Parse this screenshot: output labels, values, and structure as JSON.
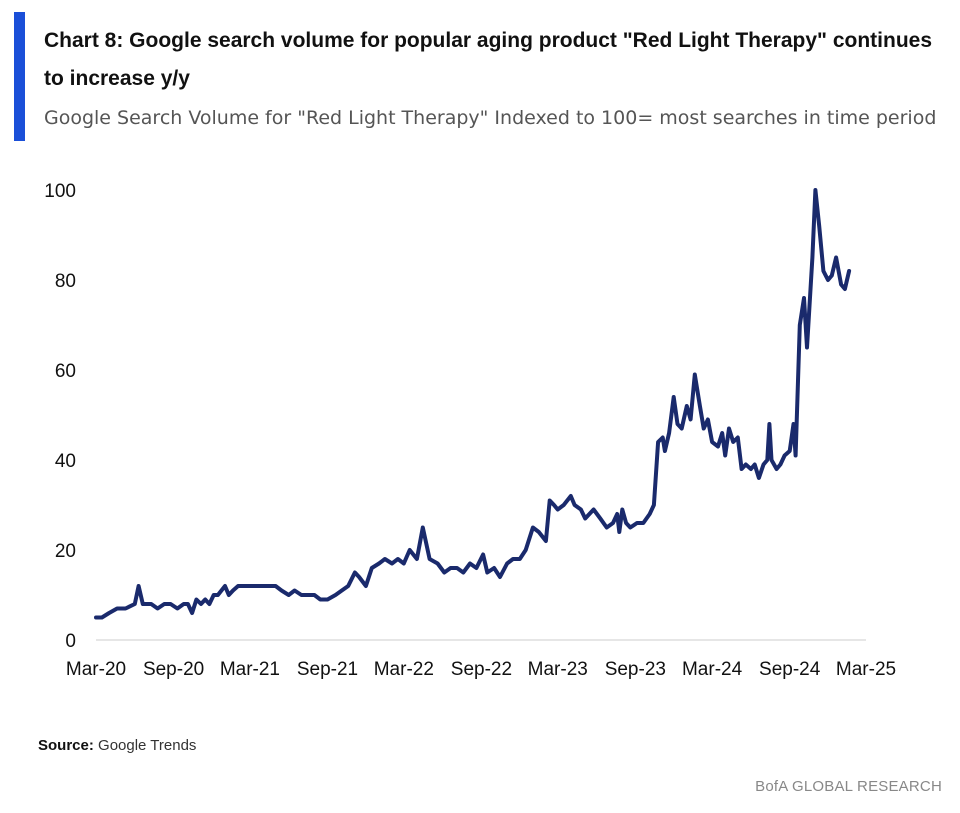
{
  "header": {
    "title": "Chart 8: Google search volume for popular aging product \"Red Light Therapy\" continues to increase y/y",
    "subtitle": "Google Search Volume for \"Red Light Therapy\" Indexed to 100= most searches in time period",
    "accent_color": "#1a4fd8"
  },
  "footer": {
    "source_label": "Source:",
    "source_text": " Google Trends",
    "brand": "BofA GLOBAL RESEARCH"
  },
  "chart_data": {
    "type": "line",
    "title": "",
    "xlabel": "",
    "ylabel": "",
    "ylim": [
      0,
      100
    ],
    "yticks": [
      "0",
      "20",
      "40",
      "60",
      "80",
      "100"
    ],
    "xlim": [
      "2020-03",
      "2025-03"
    ],
    "xticks": [
      {
        "label": "Mar-20",
        "date": "2020-03"
      },
      {
        "label": "Sep-20",
        "date": "2020-09"
      },
      {
        "label": "Mar-21",
        "date": "2021-03"
      },
      {
        "label": "Sep-21",
        "date": "2021-09"
      },
      {
        "label": "Mar-22",
        "date": "2022-03"
      },
      {
        "label": "Sep-22",
        "date": "2022-09"
      },
      {
        "label": "Mar-23",
        "date": "2023-03"
      },
      {
        "label": "Sep-23",
        "date": "2023-09"
      },
      {
        "label": "Mar-24",
        "date": "2024-03"
      },
      {
        "label": "Sep-24",
        "date": "2024-09"
      },
      {
        "label": "Mar-25",
        "date": "2025-03"
      }
    ],
    "grid": false,
    "line_color": "#1a2a6c",
    "series": [
      {
        "points": [
          [
            "2020-03-01",
            5
          ],
          [
            "2020-03-15",
            5
          ],
          [
            "2020-04-01",
            6
          ],
          [
            "2020-04-20",
            7
          ],
          [
            "2020-05-10",
            7
          ],
          [
            "2020-06-01",
            8
          ],
          [
            "2020-06-10",
            12
          ],
          [
            "2020-06-20",
            8
          ],
          [
            "2020-07-10",
            8
          ],
          [
            "2020-07-25",
            7
          ],
          [
            "2020-08-10",
            8
          ],
          [
            "2020-08-25",
            8
          ],
          [
            "2020-09-10",
            7
          ],
          [
            "2020-09-25",
            8
          ],
          [
            "2020-10-05",
            8
          ],
          [
            "2020-10-15",
            6
          ],
          [
            "2020-10-25",
            9
          ],
          [
            "2020-11-05",
            8
          ],
          [
            "2020-11-15",
            9
          ],
          [
            "2020-11-25",
            8
          ],
          [
            "2020-12-05",
            10
          ],
          [
            "2020-12-15",
            10
          ],
          [
            "2021-01-01",
            12
          ],
          [
            "2021-01-10",
            10
          ],
          [
            "2021-01-20",
            11
          ],
          [
            "2021-02-01",
            12
          ],
          [
            "2021-03-01",
            12
          ],
          [
            "2021-04-01",
            12
          ],
          [
            "2021-05-01",
            12
          ],
          [
            "2021-05-15",
            11
          ],
          [
            "2021-06-01",
            10
          ],
          [
            "2021-06-15",
            11
          ],
          [
            "2021-07-01",
            10
          ],
          [
            "2021-08-01",
            10
          ],
          [
            "2021-08-15",
            9
          ],
          [
            "2021-09-01",
            9
          ],
          [
            "2021-09-20",
            10
          ],
          [
            "2021-10-05",
            11
          ],
          [
            "2021-10-20",
            12
          ],
          [
            "2021-11-05",
            15
          ],
          [
            "2021-11-15",
            14
          ],
          [
            "2021-12-01",
            12
          ],
          [
            "2021-12-15",
            16
          ],
          [
            "2022-01-01",
            17
          ],
          [
            "2022-01-15",
            18
          ],
          [
            "2022-02-01",
            17
          ],
          [
            "2022-02-15",
            18
          ],
          [
            "2022-03-01",
            17
          ],
          [
            "2022-03-15",
            20
          ],
          [
            "2022-04-01",
            18
          ],
          [
            "2022-04-15",
            25
          ],
          [
            "2022-05-01",
            18
          ],
          [
            "2022-05-20",
            17
          ],
          [
            "2022-06-05",
            15
          ],
          [
            "2022-06-20",
            16
          ],
          [
            "2022-07-05",
            16
          ],
          [
            "2022-07-20",
            15
          ],
          [
            "2022-08-05",
            17
          ],
          [
            "2022-08-20",
            16
          ],
          [
            "2022-09-05",
            19
          ],
          [
            "2022-09-15",
            15
          ],
          [
            "2022-10-01",
            16
          ],
          [
            "2022-10-15",
            14
          ],
          [
            "2022-11-01",
            17
          ],
          [
            "2022-11-15",
            18
          ],
          [
            "2022-12-01",
            18
          ],
          [
            "2022-12-15",
            20
          ],
          [
            "2023-01-01",
            25
          ],
          [
            "2023-01-15",
            24
          ],
          [
            "2023-02-01",
            22
          ],
          [
            "2023-02-10",
            31
          ],
          [
            "2023-02-20",
            30
          ],
          [
            "2023-03-01",
            29
          ],
          [
            "2023-03-15",
            30
          ],
          [
            "2023-04-01",
            32
          ],
          [
            "2023-04-10",
            30
          ],
          [
            "2023-04-25",
            29
          ],
          [
            "2023-05-05",
            27
          ],
          [
            "2023-05-15",
            28
          ],
          [
            "2023-05-25",
            29
          ],
          [
            "2023-06-10",
            27
          ],
          [
            "2023-06-25",
            25
          ],
          [
            "2023-07-10",
            26
          ],
          [
            "2023-07-20",
            28
          ],
          [
            "2023-07-25",
            24
          ],
          [
            "2023-08-01",
            29
          ],
          [
            "2023-08-10",
            26
          ],
          [
            "2023-08-20",
            25
          ],
          [
            "2023-09-05",
            26
          ],
          [
            "2023-09-20",
            26
          ],
          [
            "2023-10-05",
            28
          ],
          [
            "2023-10-15",
            30
          ],
          [
            "2023-10-25",
            44
          ],
          [
            "2023-11-05",
            45
          ],
          [
            "2023-11-10",
            42
          ],
          [
            "2023-11-20",
            46
          ],
          [
            "2023-12-01",
            54
          ],
          [
            "2023-12-10",
            48
          ],
          [
            "2023-12-20",
            47
          ],
          [
            "2024-01-01",
            52
          ],
          [
            "2024-01-10",
            49
          ],
          [
            "2024-01-20",
            59
          ],
          [
            "2024-02-01",
            52
          ],
          [
            "2024-02-10",
            47
          ],
          [
            "2024-02-20",
            49
          ],
          [
            "2024-03-01",
            44
          ],
          [
            "2024-03-15",
            43
          ],
          [
            "2024-03-25",
            46
          ],
          [
            "2024-04-01",
            41
          ],
          [
            "2024-04-10",
            47
          ],
          [
            "2024-04-20",
            44
          ],
          [
            "2024-05-01",
            45
          ],
          [
            "2024-05-10",
            38
          ],
          [
            "2024-05-20",
            39
          ],
          [
            "2024-06-01",
            38
          ],
          [
            "2024-06-10",
            39
          ],
          [
            "2024-06-20",
            36
          ],
          [
            "2024-07-01",
            39
          ],
          [
            "2024-07-10",
            40
          ],
          [
            "2024-07-15",
            48
          ],
          [
            "2024-07-20",
            40
          ],
          [
            "2024-08-01",
            38
          ],
          [
            "2024-08-10",
            39
          ],
          [
            "2024-08-20",
            41
          ],
          [
            "2024-09-01",
            42
          ],
          [
            "2024-09-10",
            48
          ],
          [
            "2024-09-15",
            41
          ],
          [
            "2024-09-25",
            70
          ],
          [
            "2024-10-05",
            76
          ],
          [
            "2024-10-12",
            65
          ],
          [
            "2024-10-25",
            85
          ],
          [
            "2024-11-01",
            100
          ],
          [
            "2024-11-10",
            92
          ],
          [
            "2024-11-20",
            82
          ],
          [
            "2024-12-01",
            80
          ],
          [
            "2024-12-10",
            81
          ],
          [
            "2024-12-20",
            85
          ],
          [
            "2025-01-01",
            79
          ],
          [
            "2025-01-10",
            78
          ],
          [
            "2025-01-20",
            82
          ]
        ]
      }
    ]
  }
}
